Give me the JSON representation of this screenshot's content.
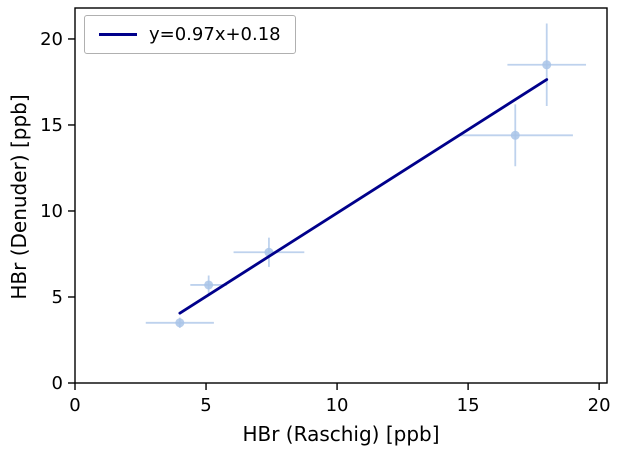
{
  "figure": {
    "background": "#ffffff"
  },
  "chart_data": {
    "type": "scatter",
    "title": "",
    "xlabel": "HBr (Raschig) [ppb]",
    "ylabel": "HBr (Denuder) [ppb]",
    "xlim": [
      0,
      20.3
    ],
    "ylim": [
      0,
      21.8
    ],
    "xticks": [
      0,
      5,
      10,
      15,
      20
    ],
    "yticks": [
      0,
      5,
      10,
      15,
      20
    ],
    "grid": false,
    "legend": {
      "label": "y=0.97x+0.18",
      "position": "upper-left"
    },
    "fit_line": {
      "slope": 0.97,
      "intercept": 0.18,
      "x_start": 4.0,
      "x_end": 18.0,
      "color": "#00008b"
    },
    "point_color": "#a9c4e8",
    "points": [
      {
        "x": 4.0,
        "y": 3.5,
        "xerr": 1.3,
        "yerr": 0.3
      },
      {
        "x": 5.1,
        "y": 5.7,
        "xerr": 0.7,
        "yerr": 0.55
      },
      {
        "x": 7.4,
        "y": 7.6,
        "xerr": 1.35,
        "yerr": 0.85
      },
      {
        "x": 16.8,
        "y": 14.4,
        "xerr": 2.2,
        "yerr": 1.8
      },
      {
        "x": 18.0,
        "y": 18.5,
        "xerr": 1.5,
        "yerr": 2.4
      }
    ]
  }
}
